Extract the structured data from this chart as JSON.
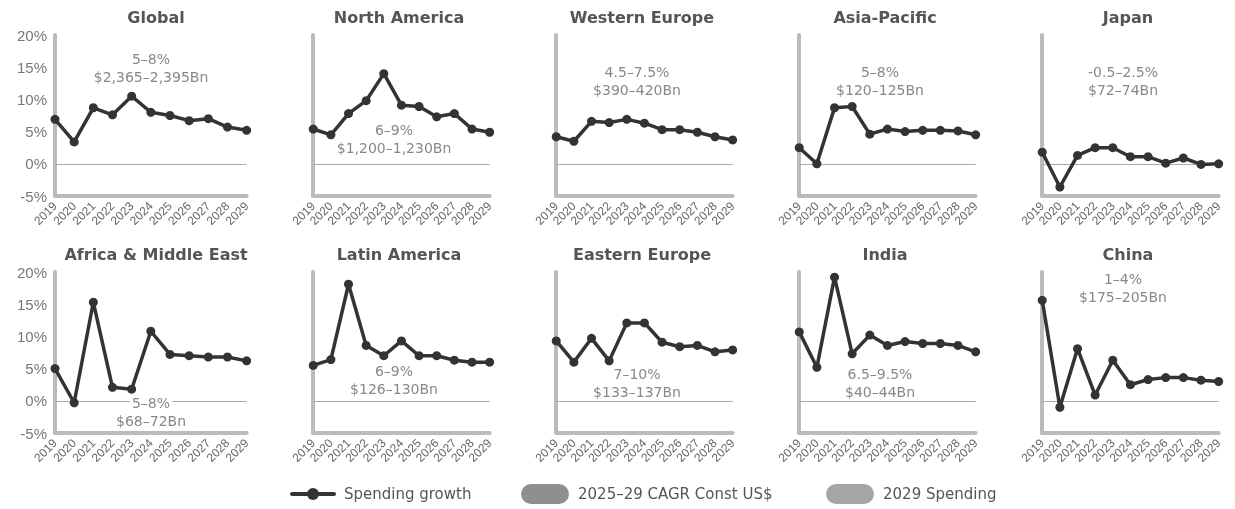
{
  "chart_data": [
    {
      "type": "line",
      "title": "Global",
      "annotations": [
        "5–8%",
        "$2,365–2,395Bn"
      ],
      "categories": [
        "2019",
        "2020",
        "2021",
        "2022",
        "2023",
        "2024",
        "2025",
        "2026",
        "2027",
        "2028",
        "2029"
      ],
      "series": [
        {
          "name": "Spending growth",
          "color": "#333333",
          "values": [
            6.9,
            3.4,
            8.7,
            7.6,
            10.5,
            8.0,
            7.5,
            6.7,
            7.0,
            5.7,
            5.2
          ]
        }
      ],
      "ylim": [
        -5,
        20
      ],
      "yticks": [
        {
          "value": -5,
          "label": "-5%"
        },
        {
          "value": 0,
          "label": "0%"
        },
        {
          "value": 5,
          "label": "5%"
        },
        {
          "value": 10,
          "label": "10%"
        },
        {
          "value": 15,
          "label": "15%"
        },
        {
          "value": 20,
          "label": "20%"
        }
      ],
      "marker": "circle",
      "line_style": "solid",
      "grid": false,
      "legend": "bottom",
      "ref_lines": [
        {
          "axis": "y",
          "value": 0,
          "color": "#aaaaaa"
        }
      ]
    },
    {
      "type": "line",
      "title": "North America",
      "annotations": [
        "6–9%",
        "$1,200–1,230Bn"
      ],
      "categories": [
        "2019",
        "2020",
        "2021",
        "2022",
        "2023",
        "2024",
        "2025",
        "2026",
        "2027",
        "2028",
        "2029"
      ],
      "series": [
        {
          "color": "#333333",
          "values": [
            5.4,
            4.5,
            7.8,
            9.8,
            14.0,
            9.1,
            8.9,
            7.3,
            7.8,
            5.4,
            4.9
          ]
        }
      ],
      "ylim": [
        -5,
        20
      ],
      "tick_labels": "x",
      "marker": "circle",
      "line_style": "solid",
      "grid": false,
      "ref_lines": [
        {
          "axis": "y",
          "value": 0,
          "color": "#aaaaaa"
        }
      ]
    },
    {
      "type": "line",
      "title": "Western Europe",
      "annotations": [
        "4.5–7.5%",
        "$390–420Bn"
      ],
      "categories": [
        "2019",
        "2020",
        "2021",
        "2022",
        "2023",
        "2024",
        "2025",
        "2026",
        "2027",
        "2028",
        "2029"
      ],
      "series": [
        {
          "color": "#333333",
          "values": [
            4.2,
            3.5,
            6.6,
            6.4,
            6.9,
            6.3,
            5.3,
            5.3,
            4.9,
            4.2,
            3.7
          ]
        }
      ],
      "ylim": [
        -5,
        20
      ],
      "tick_labels": "x",
      "marker": "circle",
      "line_style": "solid",
      "grid": false,
      "ref_lines": [
        {
          "axis": "y",
          "value": 0,
          "color": "#aaaaaa"
        }
      ]
    },
    {
      "type": "line",
      "title": "Asia-Pacific",
      "annotations": [
        "5–8%",
        "$120–125Bn"
      ],
      "categories": [
        "2019",
        "2020",
        "2021",
        "2022",
        "2023",
        "2024",
        "2025",
        "2026",
        "2027",
        "2028",
        "2029"
      ],
      "series": [
        {
          "color": "#333333",
          "values": [
            2.5,
            0,
            8.7,
            8.9,
            4.6,
            5.4,
            5.0,
            5.2,
            5.2,
            5.1,
            4.5
          ]
        }
      ],
      "ylim": [
        -5,
        20
      ],
      "tick_labels": "x",
      "marker": "circle",
      "line_style": "solid",
      "grid": false,
      "ref_lines": [
        {
          "axis": "y",
          "value": 0,
          "color": "#aaaaaa"
        }
      ]
    },
    {
      "type": "line",
      "title": "Japan",
      "annotations": [
        "-0.5–2.5%",
        "$72–74Bn"
      ],
      "categories": [
        "2019",
        "2020",
        "2021",
        "2022",
        "2023",
        "2024",
        "2025",
        "2026",
        "2027",
        "2028",
        "2029"
      ],
      "series": [
        {
          "color": "#333333",
          "values": [
            1.8,
            -3.6,
            1.3,
            2.5,
            2.5,
            1.1,
            1.1,
            0.1,
            0.9,
            -0.1,
            0
          ]
        }
      ],
      "ylim": [
        -5,
        20
      ],
      "tick_labels": "x",
      "marker": "circle",
      "line_style": "solid",
      "grid": false,
      "ref_lines": [
        {
          "axis": "y",
          "value": 0,
          "color": "#aaaaaa"
        }
      ]
    },
    {
      "type": "line",
      "title": "Africa & Middle East",
      "annotations": [
        "5–8%",
        "$68–72Bn"
      ],
      "categories": [
        "2019",
        "2020",
        "2021",
        "2022",
        "2023",
        "2024",
        "2025",
        "2026",
        "2027",
        "2028",
        "2029"
      ],
      "series": [
        {
          "color": "#333333",
          "values": [
            5.0,
            -0.3,
            15.3,
            2.1,
            1.8,
            10.8,
            7.2,
            7.0,
            6.8,
            6.8,
            6.2
          ]
        }
      ],
      "ylim": [
        -5,
        20
      ],
      "yticks": [
        {
          "value": -5,
          "label": "-5%"
        },
        {
          "value": 0,
          "label": "0%"
        },
        {
          "value": 5,
          "label": "5%"
        },
        {
          "value": 10,
          "label": "10%"
        },
        {
          "value": 15,
          "label": "15%"
        },
        {
          "value": 20,
          "label": "20%"
        }
      ],
      "marker": "circle",
      "line_style": "solid",
      "grid": false,
      "ref_lines": [
        {
          "axis": "y",
          "value": 0,
          "color": "#aaaaaa"
        }
      ]
    },
    {
      "type": "line",
      "title": "Latin America",
      "annotations": [
        "6–9%",
        "$126–130Bn"
      ],
      "categories": [
        "2019",
        "2020",
        "2021",
        "2022",
        "2023",
        "2024",
        "2025",
        "2026",
        "2027",
        "2028",
        "2029"
      ],
      "series": [
        {
          "color": "#333333",
          "values": [
            5.5,
            6.4,
            18.1,
            8.6,
            7.0,
            9.3,
            7.0,
            7.0,
            6.3,
            6.0,
            6.0
          ]
        }
      ],
      "ylim": [
        -5,
        20
      ],
      "tick_labels": "x",
      "marker": "circle",
      "line_style": "solid",
      "grid": false,
      "ref_lines": [
        {
          "axis": "y",
          "value": 0,
          "color": "#aaaaaa"
        }
      ]
    },
    {
      "type": "line",
      "title": "Eastern Europe",
      "annotations": [
        "7–10%",
        "$133–137Bn"
      ],
      "categories": [
        "2019",
        "2020",
        "2021",
        "2022",
        "2023",
        "2024",
        "2025",
        "2026",
        "2027",
        "2028",
        "2029"
      ],
      "series": [
        {
          "color": "#333333",
          "values": [
            9.3,
            6.0,
            9.7,
            6.2,
            12.1,
            12.1,
            9.1,
            8.4,
            8.6,
            7.6,
            7.9
          ]
        }
      ],
      "ylim": [
        -5,
        20
      ],
      "tick_labels": "x",
      "marker": "circle",
      "line_style": "solid",
      "grid": false,
      "ref_lines": [
        {
          "axis": "y",
          "value": 0,
          "color": "#aaaaaa"
        }
      ]
    },
    {
      "type": "line",
      "title": "India",
      "annotations": [
        "6.5–9.5%",
        "$40–44Bn"
      ],
      "categories": [
        "2019",
        "2020",
        "2021",
        "2022",
        "2023",
        "2024",
        "2025",
        "2026",
        "2027",
        "2028",
        "2029"
      ],
      "series": [
        {
          "color": "#333333",
          "values": [
            10.7,
            5.2,
            19.2,
            7.3,
            10.2,
            8.6,
            9.2,
            8.9,
            8.9,
            8.6,
            7.6
          ]
        }
      ],
      "ylim": [
        -5,
        20
      ],
      "tick_labels": "x",
      "marker": "circle",
      "line_style": "solid",
      "grid": false,
      "ref_lines": [
        {
          "axis": "y",
          "value": 0,
          "color": "#aaaaaa"
        }
      ]
    },
    {
      "type": "line",
      "title": "China",
      "annotations": [
        "1–4%",
        "$175–205Bn"
      ],
      "categories": [
        "2019",
        "2020",
        "2021",
        "2022",
        "2023",
        "2024",
        "2025",
        "2026",
        "2027",
        "2028",
        "2029"
      ],
      "series": [
        {
          "color": "#333333",
          "values": [
            15.6,
            -1.0,
            8.1,
            0.9,
            6.3,
            2.5,
            3.3,
            3.6,
            3.6,
            3.2,
            3.0
          ]
        }
      ],
      "ylim": [
        -5,
        20
      ],
      "tick_labels": "x",
      "marker": "circle",
      "line_style": "solid",
      "grid": false,
      "ref_lines": [
        {
          "axis": "y",
          "value": 0,
          "color": "#aaaaaa"
        }
      ]
    },
    {
      "type": "other",
      "annotations": [
        "2025–29 CAGR Const US$",
        "2029 Spending"
      ],
      "colors": [
        "#8f8f8f",
        "#a5a5a5"
      ]
    }
  ]
}
